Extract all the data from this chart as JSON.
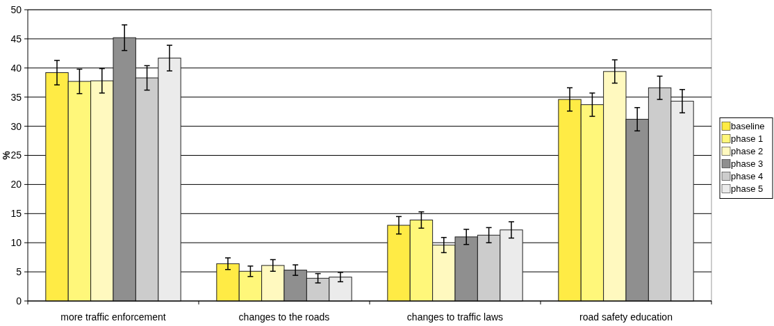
{
  "chart_data": {
    "type": "bar",
    "ylabel": "%",
    "categories": [
      "more traffic enforcement",
      "changes to the roads",
      "changes to traffic laws",
      "road safety education"
    ],
    "series": [
      {
        "name": "baseline",
        "color": "#ffeb45",
        "values": [
          39.2,
          6.4,
          13.0,
          34.6
        ],
        "errors": [
          2.1,
          1.0,
          1.5,
          2.0
        ]
      },
      {
        "name": "phase 1",
        "color": "#fff77a",
        "values": [
          37.7,
          5.1,
          13.9,
          33.7
        ],
        "errors": [
          2.1,
          0.9,
          1.4,
          2.0
        ]
      },
      {
        "name": "phase 2",
        "color": "#fff9bf",
        "values": [
          37.8,
          6.1,
          9.6,
          39.4
        ],
        "errors": [
          2.1,
          1.0,
          1.3,
          2.0
        ]
      },
      {
        "name": "phase 3",
        "color": "#8f8f8f",
        "values": [
          45.2,
          5.3,
          11.0,
          31.2
        ],
        "errors": [
          2.2,
          0.9,
          1.3,
          2.0
        ]
      },
      {
        "name": "phase 4",
        "color": "#cccccc",
        "values": [
          38.3,
          3.9,
          11.3,
          36.6
        ],
        "errors": [
          2.1,
          0.8,
          1.3,
          2.0
        ]
      },
      {
        "name": "phase 5",
        "color": "#ebebeb",
        "values": [
          41.7,
          4.1,
          12.2,
          34.3
        ],
        "errors": [
          2.2,
          0.8,
          1.4,
          2.0
        ]
      }
    ],
    "ylim": [
      0,
      50
    ],
    "yticks": [
      0,
      5,
      10,
      15,
      20,
      25,
      30,
      35,
      40,
      45,
      50
    ],
    "grid": "y",
    "legend": "right"
  }
}
